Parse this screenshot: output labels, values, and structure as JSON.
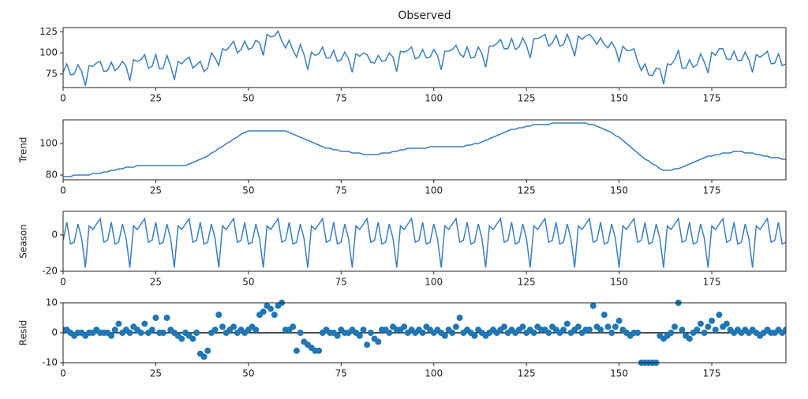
{
  "chart_data": {
    "type": "decomposition",
    "title": "Observed",
    "x": [
      0,
      1,
      2,
      3,
      4,
      5,
      6,
      7,
      8,
      9,
      10,
      11,
      12,
      13,
      14,
      15,
      16,
      17,
      18,
      19,
      20,
      21,
      22,
      23,
      24,
      25,
      26,
      27,
      28,
      29,
      30,
      31,
      32,
      33,
      34,
      35,
      36,
      37,
      38,
      39,
      40,
      41,
      42,
      43,
      44,
      45,
      46,
      47,
      48,
      49,
      50,
      51,
      52,
      53,
      54,
      55,
      56,
      57,
      58,
      59,
      60,
      61,
      62,
      63,
      64,
      65,
      66,
      67,
      68,
      69,
      70,
      71,
      72,
      73,
      74,
      75,
      76,
      77,
      78,
      79,
      80,
      81,
      82,
      83,
      84,
      85,
      86,
      87,
      88,
      89,
      90,
      91,
      92,
      93,
      94,
      95,
      96,
      97,
      98,
      99,
      100,
      101,
      102,
      103,
      104,
      105,
      106,
      107,
      108,
      109,
      110,
      111,
      112,
      113,
      114,
      115,
      116,
      117,
      118,
      119,
      120,
      121,
      122,
      123,
      124,
      125,
      126,
      127,
      128,
      129,
      130,
      131,
      132,
      133,
      134,
      135,
      136,
      137,
      138,
      139,
      140,
      141,
      142,
      143,
      144,
      145,
      146,
      147,
      148,
      149,
      150,
      151,
      152,
      153,
      154,
      155,
      156,
      157,
      158,
      159,
      160,
      161,
      162,
      163,
      164,
      165,
      166,
      167,
      168,
      169,
      170,
      171,
      172,
      173,
      174,
      175,
      176,
      177,
      178,
      179,
      180,
      181,
      182,
      183,
      184,
      185,
      186,
      187,
      188,
      189,
      190,
      191,
      192,
      193,
      194,
      195
    ],
    "xlim": [
      0,
      195
    ],
    "xticks": [
      0,
      25,
      50,
      75,
      100,
      125,
      150,
      175
    ],
    "panels": [
      {
        "type": "line",
        "color": "#3a7fbf",
        "ylim": [
          59,
          130
        ],
        "yticks": [
          75,
          100,
          125
        ],
        "values": [
          77,
          87,
          74,
          75,
          86,
          78,
          61,
          85,
          84,
          88,
          90,
          78,
          79,
          89,
          79,
          83,
          90,
          84,
          67,
          92,
          90,
          92,
          98,
          82,
          84,
          98,
          81,
          82,
          97,
          85,
          68,
          90,
          87,
          92,
          95,
          82,
          86,
          90,
          78,
          82,
          100,
          94,
          85,
          105,
          103,
          108,
          114,
          100,
          104,
          114,
          104,
          106,
          115,
          112,
          97,
          122,
          119,
          120,
          126,
          114,
          106,
          115,
          103,
          95,
          110,
          98,
          80,
          101,
          97,
          99,
          107,
          94,
          94,
          103,
          90,
          92,
          101,
          93,
          77,
          99,
          96,
          100,
          98,
          89,
          88,
          97,
          90,
          91,
          100,
          95,
          78,
          102,
          101,
          103,
          107,
          93,
          95,
          104,
          94,
          95,
          104,
          97,
          80,
          102,
          102,
          104,
          109,
          99,
          95,
          107,
          94,
          95,
          107,
          99,
          83,
          108,
          108,
          111,
          116,
          105,
          105,
          117,
          104,
          107,
          118,
          109,
          94,
          117,
          117,
          119,
          122,
          108,
          112,
          121,
          108,
          110,
          122,
          111,
          96,
          120,
          116,
          120,
          122,
          117,
          110,
          118,
          110,
          106,
          113,
          105,
          90,
          108,
          103,
          103,
          105,
          90,
          79,
          87,
          74,
          73,
          82,
          81,
          63,
          87,
          86,
          92,
          103,
          82,
          82,
          92,
          83,
          86,
          99,
          89,
          76,
          101,
          97,
          105,
          105,
          93,
          92,
          102,
          91,
          91,
          101,
          92,
          77,
          98,
          95,
          98,
          102,
          87,
          88,
          99,
          85,
          87
        ]
      },
      {
        "type": "line",
        "ylabel": "Trend",
        "color": "#3a7fbf",
        "ylim": [
          77,
          115
        ],
        "yticks": [
          80,
          100
        ],
        "values": [
          79,
          79,
          79,
          80,
          80,
          80,
          80,
          80,
          81,
          81,
          81,
          82,
          82,
          83,
          83,
          84,
          84,
          85,
          85,
          85,
          86,
          86,
          86,
          86,
          86,
          86,
          86,
          86,
          86,
          86,
          86,
          86,
          86,
          86,
          87,
          88,
          89,
          90,
          91,
          92,
          94,
          95,
          97,
          98,
          100,
          101,
          103,
          104,
          106,
          107,
          108,
          108,
          108,
          108,
          108,
          108,
          108,
          108,
          108,
          108,
          108,
          107,
          106,
          105,
          104,
          103,
          102,
          101,
          100,
          99,
          98,
          97,
          97,
          96,
          96,
          95,
          95,
          95,
          94,
          94,
          94,
          93,
          93,
          93,
          93,
          93,
          94,
          94,
          94,
          95,
          95,
          96,
          96,
          97,
          97,
          97,
          97,
          97,
          97,
          98,
          98,
          98,
          98,
          98,
          98,
          98,
          98,
          98,
          98,
          99,
          99,
          100,
          100,
          101,
          102,
          103,
          104,
          105,
          106,
          107,
          108,
          109,
          109,
          110,
          110,
          111,
          111,
          112,
          112,
          112,
          112,
          112,
          113,
          113,
          113,
          113,
          113,
          113,
          113,
          113,
          113,
          113,
          112,
          112,
          111,
          110,
          109,
          108,
          107,
          105,
          104,
          102,
          100,
          98,
          96,
          94,
          92,
          90,
          89,
          87,
          86,
          84,
          83,
          83,
          83,
          84,
          84,
          85,
          86,
          87,
          88,
          89,
          90,
          91,
          92,
          92,
          93,
          93,
          94,
          94,
          94,
          95,
          95,
          95,
          94,
          94,
          94,
          93,
          93,
          92,
          92,
          91,
          91,
          91,
          90,
          90
        ]
      },
      {
        "type": "line",
        "ylabel": "Season",
        "color": "#3a7fbf",
        "ylim": [
          -20,
          13
        ],
        "yticks": [
          -20,
          0
        ],
        "values": [
          -3,
          7,
          -5,
          -4,
          6,
          -2,
          -18,
          5,
          3,
          6,
          9,
          -4,
          -3,
          7,
          -5,
          -4,
          6,
          -2,
          -18,
          5,
          3,
          6,
          9,
          -4,
          -3,
          7,
          -5,
          -4,
          6,
          -2,
          -18,
          5,
          3,
          6,
          9,
          -4,
          -3,
          7,
          -5,
          -4,
          6,
          -2,
          -18,
          5,
          3,
          6,
          9,
          -4,
          -3,
          7,
          -5,
          -4,
          6,
          -2,
          -18,
          5,
          3,
          6,
          9,
          -4,
          -3,
          7,
          -5,
          -4,
          6,
          -2,
          -18,
          5,
          3,
          6,
          9,
          -4,
          -3,
          7,
          -5,
          -4,
          6,
          -2,
          -18,
          5,
          3,
          6,
          9,
          -4,
          -3,
          7,
          -5,
          -4,
          6,
          -2,
          -18,
          5,
          3,
          6,
          9,
          -4,
          -3,
          7,
          -5,
          -4,
          6,
          -2,
          -18,
          5,
          3,
          6,
          9,
          -4,
          -3,
          7,
          -5,
          -4,
          6,
          -2,
          -18,
          5,
          3,
          6,
          9,
          -4,
          -3,
          7,
          -5,
          -4,
          6,
          -2,
          -18,
          5,
          3,
          6,
          9,
          -4,
          -3,
          7,
          -5,
          -4,
          6,
          -2,
          -18,
          5,
          3,
          6,
          9,
          -4,
          -3,
          7,
          -5,
          -4,
          6,
          -2,
          -18,
          5,
          3,
          6,
          9,
          -4,
          -3,
          7,
          -5,
          -4,
          6,
          -2,
          -18,
          5,
          3,
          6,
          9,
          -4,
          -3,
          7,
          -5,
          -4,
          6,
          -2,
          -18,
          5,
          3,
          6,
          9,
          -4,
          -3,
          7,
          -5,
          -4,
          6,
          -2,
          -18,
          5,
          3,
          6,
          9,
          -4,
          -3,
          7,
          -5,
          -4
        ]
      },
      {
        "type": "scatter",
        "ylabel": "Resid",
        "color": "#1f77b4",
        "hline": 0,
        "ylim": [
          -10,
          10
        ],
        "yticks": [
          -10,
          0,
          10
        ],
        "values": [
          1,
          1,
          0,
          -1,
          0,
          0,
          -1,
          0,
          0,
          1,
          0,
          0,
          0,
          -1,
          1,
          3,
          0,
          1,
          0,
          2,
          1,
          0,
          3,
          0,
          1,
          5,
          0,
          0,
          5,
          1,
          0,
          -1,
          -2,
          0,
          -1,
          -2,
          0,
          -7,
          -8,
          -6,
          0,
          1,
          6,
          2,
          0,
          1,
          2,
          0,
          1,
          0,
          1,
          2,
          1,
          6,
          7,
          9,
          8,
          6,
          9,
          10,
          1,
          1,
          2,
          -6,
          0,
          -3,
          -4,
          -5,
          -6,
          -6,
          0,
          1,
          0,
          0,
          -1,
          1,
          0,
          0,
          1,
          0,
          -1,
          1,
          -4,
          0,
          -2,
          -3,
          1,
          1,
          0,
          2,
          1,
          1,
          2,
          0,
          1,
          0,
          1,
          0,
          2,
          1,
          0,
          1,
          0,
          -1,
          1,
          0,
          2,
          5,
          0,
          1,
          0,
          -1,
          1,
          0,
          -1,
          0,
          1,
          0,
          1,
          2,
          0,
          1,
          0,
          1,
          2,
          0,
          1,
          0,
          2,
          1,
          1,
          0,
          2,
          1,
          0,
          1,
          3,
          0,
          1,
          2,
          0,
          1,
          1,
          9,
          2,
          1,
          6,
          2,
          0,
          2,
          4,
          1,
          0,
          -1,
          0,
          0,
          -10,
          -10,
          -10,
          -10,
          -10,
          -1,
          -2,
          -1,
          0,
          2,
          10,
          1,
          -1,
          -2,
          0,
          1,
          3,
          0,
          2,
          4,
          1,
          6,
          2,
          3,
          1,
          0,
          1,
          0,
          1,
          0,
          1,
          0,
          -1,
          0,
          1,
          0,
          0,
          1,
          0,
          1
        ]
      }
    ]
  }
}
